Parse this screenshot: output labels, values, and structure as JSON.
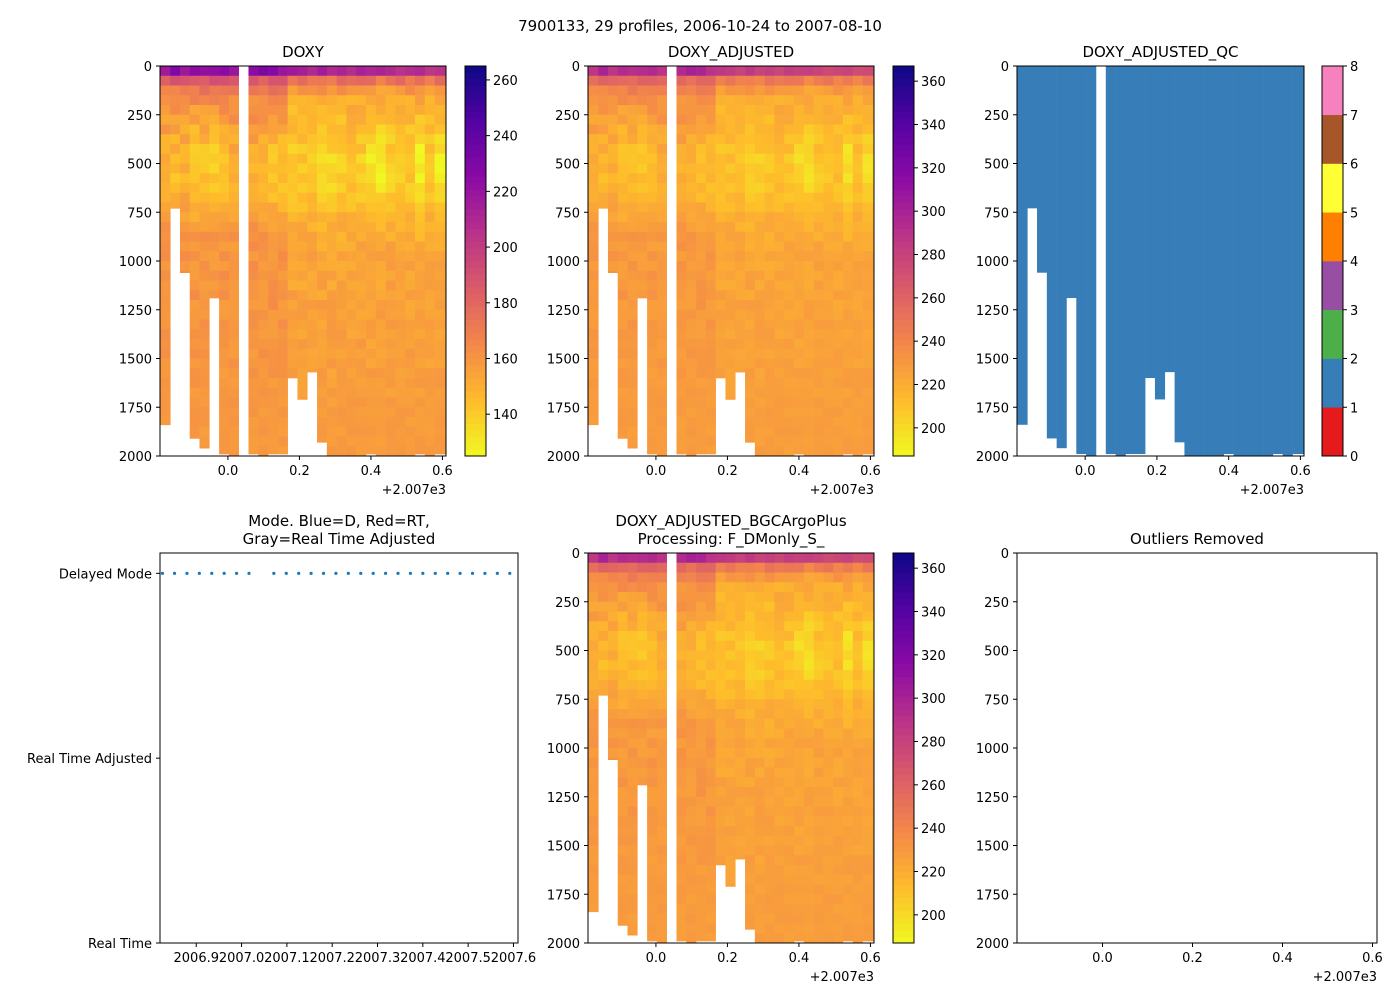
{
  "suptitle": "7900133, 29 profiles, 2006-10-24 to 2007-08-10",
  "offset_label": "+2.007e3",
  "chart_data": [
    {
      "id": "doxy",
      "type": "heatmap",
      "title": "DOXY",
      "xlim": [
        -0.19,
        0.61
      ],
      "ylim": [
        2000,
        0
      ],
      "xticks": [
        0.0,
        0.2,
        0.4,
        0.6
      ],
      "xtick_labels": [
        "0.0",
        "0.2",
        "0.4",
        "0.6"
      ],
      "yticks": [
        0,
        250,
        500,
        750,
        1000,
        1250,
        1500,
        1750,
        2000
      ],
      "ytick_labels": [
        "0",
        "250",
        "500",
        "750",
        "1000",
        "1250",
        "1500",
        "1750",
        "2000"
      ],
      "colormap": "plasma_r",
      "colorbar": {
        "min": 125,
        "max": 265,
        "ticks": [
          140,
          160,
          180,
          200,
          220,
          240,
          260
        ],
        "tick_labels": [
          "140",
          "160",
          "180",
          "200",
          "220",
          "240",
          "260"
        ]
      },
      "value_range": [
        125,
        265
      ],
      "profiles_x": [
        -0.1746,
        -0.1479,
        -0.1205,
        -0.0932,
        -0.0658,
        -0.0384,
        -0.011,
        0.0164,
        0.0438,
        0.0712,
        0.0986,
        0.126,
        0.1534,
        0.1808,
        0.2082,
        0.2356,
        0.263,
        0.2904,
        0.3178,
        0.3452,
        0.3726,
        0.4,
        0.4274,
        0.4548,
        0.4822,
        0.5096,
        0.537,
        0.5644,
        0.5918
      ],
      "profile_max_depth": [
        1840,
        730,
        1060,
        1910,
        1960,
        1190,
        1990,
        2000,
        0,
        1990,
        2000,
        1990,
        1990,
        1600,
        1710,
        1570,
        1930,
        2000,
        2000,
        2000,
        2000,
        1990,
        2000,
        2000,
        2000,
        2000,
        1990,
        2000,
        1990
      ],
      "bottom_value": 158
    },
    {
      "id": "doxy_adjusted",
      "type": "heatmap",
      "title": "DOXY_ADJUSTED",
      "xlim": [
        -0.19,
        0.61
      ],
      "ylim": [
        2000,
        0
      ],
      "xticks": [
        0.0,
        0.2,
        0.4,
        0.6
      ],
      "xtick_labels": [
        "0.0",
        "0.2",
        "0.4",
        "0.6"
      ],
      "yticks": [
        0,
        250,
        500,
        750,
        1000,
        1250,
        1500,
        1750,
        2000
      ],
      "ytick_labels": [
        "0",
        "250",
        "500",
        "750",
        "1000",
        "1250",
        "1500",
        "1750",
        "2000"
      ],
      "colormap": "plasma_r",
      "colorbar": {
        "min": 187,
        "max": 367,
        "ticks": [
          200,
          220,
          240,
          260,
          280,
          300,
          320,
          340,
          360
        ],
        "tick_labels": [
          "200",
          "220",
          "240",
          "260",
          "280",
          "300",
          "320",
          "340",
          "360"
        ]
      },
      "value_range": [
        187,
        367
      ],
      "profiles_x": [
        -0.1746,
        -0.1479,
        -0.1205,
        -0.0932,
        -0.0658,
        -0.0384,
        -0.011,
        0.0164,
        0.0438,
        0.0712,
        0.0986,
        0.126,
        0.1534,
        0.1808,
        0.2082,
        0.2356,
        0.263,
        0.2904,
        0.3178,
        0.3452,
        0.3726,
        0.4,
        0.4274,
        0.4548,
        0.4822,
        0.5096,
        0.537,
        0.5644,
        0.5918
      ],
      "profile_max_depth": [
        1840,
        730,
        1060,
        1910,
        1960,
        1190,
        1990,
        2000,
        0,
        1990,
        2000,
        1990,
        1990,
        1600,
        1710,
        1570,
        1930,
        2000,
        2000,
        2000,
        2000,
        1990,
        2000,
        2000,
        2000,
        2000,
        1990,
        2000,
        1990
      ],
      "bottom_value": 228
    },
    {
      "id": "doxy_adjusted_qc",
      "type": "heatmap",
      "title": "DOXY_ADJUSTED_QC",
      "xlim": [
        -0.19,
        0.61
      ],
      "ylim": [
        2000,
        0
      ],
      "xticks": [
        0.0,
        0.2,
        0.4,
        0.6
      ],
      "xtick_labels": [
        "0.0",
        "0.2",
        "0.4",
        "0.6"
      ],
      "yticks": [
        0,
        250,
        500,
        750,
        1000,
        1250,
        1500,
        1750,
        2000
      ],
      "ytick_labels": [
        "0",
        "250",
        "500",
        "750",
        "1000",
        "1250",
        "1500",
        "1750",
        "2000"
      ],
      "qc_value": 1,
      "qc_colorbar": {
        "min": 0,
        "max": 8,
        "colors": [
          "#e41a1c",
          "#377eb8",
          "#4daf4a",
          "#984ea3",
          "#ff7f00",
          "#ffff33",
          "#a65628",
          "#f781bf",
          "#999999"
        ],
        "ticks": [
          0,
          1,
          2,
          3,
          4,
          5,
          6,
          7,
          8
        ],
        "tick_labels": [
          "0",
          "1",
          "2",
          "3",
          "4",
          "5",
          "6",
          "7",
          "8"
        ]
      },
      "profiles_x": [
        -0.1746,
        -0.1479,
        -0.1205,
        -0.0932,
        -0.0658,
        -0.0384,
        -0.011,
        0.0164,
        0.0438,
        0.0712,
        0.0986,
        0.126,
        0.1534,
        0.1808,
        0.2082,
        0.2356,
        0.263,
        0.2904,
        0.3178,
        0.3452,
        0.3726,
        0.4,
        0.4274,
        0.4548,
        0.4822,
        0.5096,
        0.537,
        0.5644,
        0.5918
      ],
      "profile_max_depth": [
        1840,
        730,
        1060,
        1910,
        1960,
        1190,
        1990,
        2000,
        0,
        1990,
        2000,
        1990,
        1990,
        1600,
        1710,
        1570,
        1930,
        2000,
        2000,
        2000,
        2000,
        1990,
        2000,
        2000,
        2000,
        2000,
        1990,
        2000,
        1990
      ]
    },
    {
      "id": "mode",
      "type": "scatter",
      "title_lines": [
        "Mode. Blue=D, Red=RT,",
        "Gray=Real Time Adjusted"
      ],
      "xlim": [
        2006.82,
        2007.61
      ],
      "ylim": [
        0,
        2.11
      ],
      "xticks": [
        2006.9,
        2007.0,
        2007.1,
        2007.2,
        2007.3,
        2007.4,
        2007.5,
        2007.6
      ],
      "xtick_labels": [
        "2006.9",
        "2007.0",
        "2007.1",
        "2007.2",
        "2007.3",
        "2007.4",
        "2007.5",
        "2007.6"
      ],
      "yticks": [
        0,
        1,
        2
      ],
      "ytick_labels": [
        "Real Time",
        "Real Time Adjusted",
        "Delayed Mode"
      ],
      "color": "#1f77b4",
      "x": [
        2006.8254,
        2006.8521,
        2006.8795,
        2006.9068,
        2006.9342,
        2006.9616,
        2006.989,
        2007.0164,
        2007.0712,
        2007.0986,
        2007.126,
        2007.1534,
        2007.1808,
        2007.2082,
        2007.2356,
        2007.263,
        2007.2904,
        2007.3178,
        2007.3452,
        2007.3726,
        2007.4,
        2007.4274,
        2007.4548,
        2007.4822,
        2007.5096,
        2007.537,
        2007.5644,
        2007.5918
      ],
      "y": [
        2,
        2,
        2,
        2,
        2,
        2,
        2,
        2,
        2,
        2,
        2,
        2,
        2,
        2,
        2,
        2,
        2,
        2,
        2,
        2,
        2,
        2,
        2,
        2,
        2,
        2,
        2,
        2
      ]
    },
    {
      "id": "doxy_bgc",
      "type": "heatmap",
      "title_lines": [
        "DOXY_ADJUSTED_BGCArgoPlus",
        "Processing: F_DMonly_S_"
      ],
      "xlim": [
        -0.19,
        0.61
      ],
      "ylim": [
        2000,
        0
      ],
      "xticks": [
        0.0,
        0.2,
        0.4,
        0.6
      ],
      "xtick_labels": [
        "0.0",
        "0.2",
        "0.4",
        "0.6"
      ],
      "yticks": [
        0,
        250,
        500,
        750,
        1000,
        1250,
        1500,
        1750,
        2000
      ],
      "ytick_labels": [
        "0",
        "250",
        "500",
        "750",
        "1000",
        "1250",
        "1500",
        "1750",
        "2000"
      ],
      "colormap": "plasma_r",
      "colorbar": {
        "min": 187,
        "max": 367,
        "ticks": [
          200,
          220,
          240,
          260,
          280,
          300,
          320,
          340,
          360
        ],
        "tick_labels": [
          "200",
          "220",
          "240",
          "260",
          "280",
          "300",
          "320",
          "340",
          "360"
        ]
      },
      "value_range": [
        187,
        367
      ],
      "profiles_x": [
        -0.1746,
        -0.1479,
        -0.1205,
        -0.0932,
        -0.0658,
        -0.0384,
        -0.011,
        0.0164,
        0.0438,
        0.0712,
        0.0986,
        0.126,
        0.1534,
        0.1808,
        0.2082,
        0.2356,
        0.263,
        0.2904,
        0.3178,
        0.3452,
        0.3726,
        0.4,
        0.4274,
        0.4548,
        0.4822,
        0.5096,
        0.537,
        0.5644,
        0.5918
      ],
      "profile_max_depth": [
        1840,
        730,
        1060,
        1910,
        1960,
        1190,
        1990,
        2000,
        0,
        1990,
        2000,
        1990,
        1990,
        1600,
        1710,
        1570,
        1930,
        2000,
        2000,
        2000,
        2000,
        1990,
        2000,
        2000,
        2000,
        2000,
        1990,
        2000,
        1990
      ],
      "bottom_value": 228
    },
    {
      "id": "outliers",
      "type": "scatter",
      "title": "Outliers Removed",
      "xlim": [
        -0.19,
        0.61
      ],
      "ylim": [
        2000,
        0
      ],
      "xticks": [
        0.0,
        0.2,
        0.4,
        0.6
      ],
      "xtick_labels": [
        "0.0",
        "0.2",
        "0.4",
        "0.6"
      ],
      "yticks": [
        0,
        250,
        500,
        750,
        1000,
        1250,
        1500,
        1750,
        2000
      ],
      "ytick_labels": [
        "0",
        "250",
        "500",
        "750",
        "1000",
        "1250",
        "1500",
        "1750",
        "2000"
      ],
      "x": [],
      "y": []
    }
  ]
}
